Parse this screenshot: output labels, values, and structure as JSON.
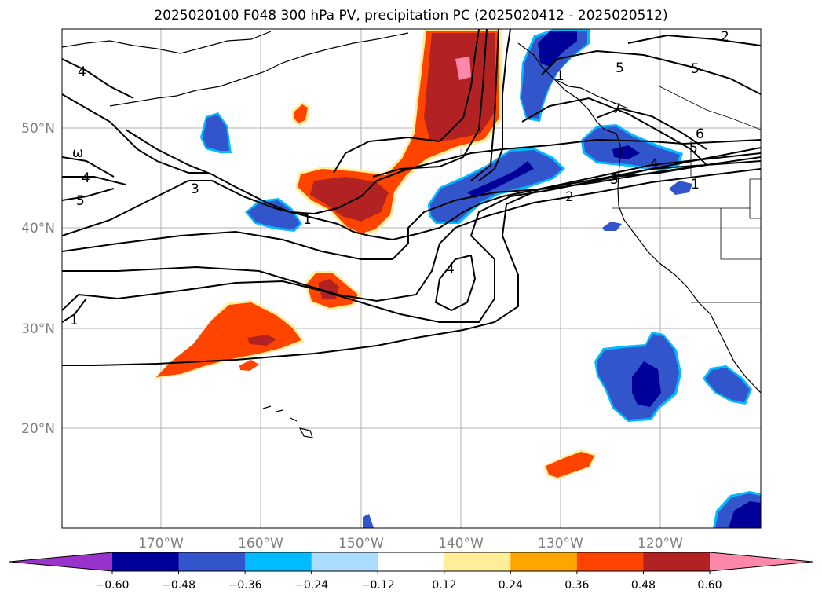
{
  "title": "2025020100 F048 300 hPa PV, precipitation PC (2025020412 - 2025020512)",
  "lat_ticks": [
    "50°N",
    "40°N",
    "30°N",
    "20°N"
  ],
  "lon_ticks": [
    "170°W",
    "160°W",
    "150°W",
    "140°W",
    "130°W",
    "120°W"
  ],
  "contour_labels": [
    "4",
    "ω",
    "4",
    "5",
    "3",
    "1",
    "4",
    "1",
    "5",
    "7",
    "6",
    "5",
    "4",
    "3",
    "2",
    "1",
    "1",
    "2",
    "5"
  ],
  "colorbar": {
    "tick_labels": [
      "−0.60",
      "−0.48",
      "−0.36",
      "−0.24",
      "−0.12",
      "0.12",
      "0.24",
      "0.36",
      "0.48",
      "0.60"
    ],
    "colors": [
      "#9933cc",
      "#000099",
      "#3355cc",
      "#00bbff",
      "#aaddff",
      "#ffffff",
      "#ffee99",
      "#ffa500",
      "#ff4400",
      "#b22222",
      "#ff88aa"
    ]
  }
}
